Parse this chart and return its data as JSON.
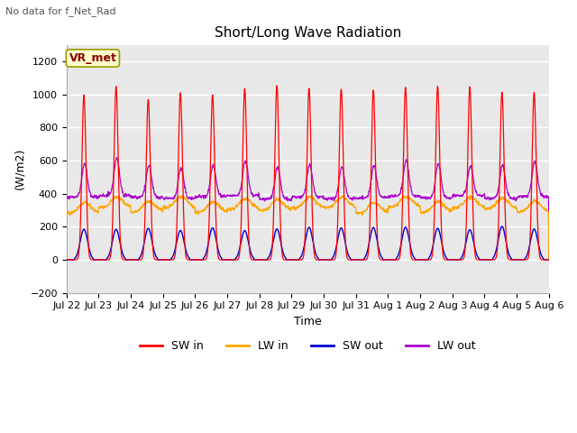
{
  "title": "Short/Long Wave Radiation",
  "subtitle": "No data for f_Net_Rad",
  "xlabel": "Time",
  "ylabel": "(W/m2)",
  "ylim": [
    -200,
    1300
  ],
  "yticks": [
    -200,
    0,
    200,
    400,
    600,
    800,
    1000,
    1200
  ],
  "xlim": [
    0,
    15
  ],
  "num_days": 15,
  "background_color": "#ffffff",
  "plot_bg_color": "#e8e8e8",
  "legend_label": "VR_met",
  "colors": {
    "SW_in": "#ff0000",
    "LW_in": "#ffa500",
    "SW_out": "#0000cc",
    "LW_out": "#aa00cc"
  },
  "grid_color": "#ffffff",
  "title_fontsize": 11,
  "label_fontsize": 9,
  "tick_fontsize": 8
}
